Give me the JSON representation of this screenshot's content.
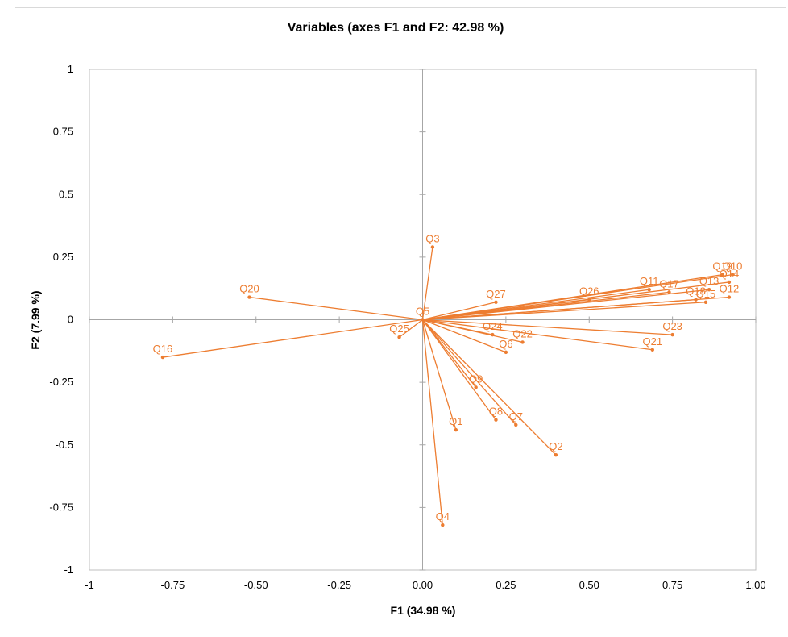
{
  "chart_data": {
    "type": "scatter",
    "title": "Variables (axes F1 and F2: 42.98 %)",
    "xlabel": "F1 (34.98 %)",
    "ylabel": "F2 (7.99 %)",
    "xlim": [
      -1,
      1
    ],
    "ylim": [
      -1,
      1
    ],
    "x_ticks": [
      "-1",
      "-0.75",
      "-0.50",
      "-0.25",
      "0.00",
      "0.25",
      "0.50",
      "0.75",
      "1.00"
    ],
    "x_tick_values": [
      -1,
      -0.75,
      -0.5,
      -0.25,
      0,
      0.25,
      0.5,
      0.75,
      1
    ],
    "y_ticks": [
      "1",
      "0.75",
      "0.5",
      "0.25",
      "0",
      "-0.25",
      "-0.5",
      "-0.75",
      "-1"
    ],
    "y_tick_values": [
      1,
      0.75,
      0.5,
      0.25,
      0,
      -0.25,
      -0.5,
      -0.75,
      -1
    ],
    "grid": false,
    "color": "#ED7D31",
    "points": [
      {
        "label": "Q1",
        "x": 0.1,
        "y": -0.44
      },
      {
        "label": "Q2",
        "x": 0.4,
        "y": -0.54
      },
      {
        "label": "Q3",
        "x": 0.03,
        "y": 0.29
      },
      {
        "label": "Q4",
        "x": 0.06,
        "y": -0.82
      },
      {
        "label": "Q5",
        "x": 0.0,
        "y": 0.0
      },
      {
        "label": "Q6",
        "x": 0.25,
        "y": -0.13
      },
      {
        "label": "Q7",
        "x": 0.28,
        "y": -0.42
      },
      {
        "label": "Q8",
        "x": 0.22,
        "y": -0.4
      },
      {
        "label": "Q9",
        "x": 0.16,
        "y": -0.27
      },
      {
        "label": "Q10",
        "x": 0.93,
        "y": 0.18
      },
      {
        "label": "Q11",
        "x": 0.68,
        "y": 0.12
      },
      {
        "label": "Q12",
        "x": 0.92,
        "y": 0.09
      },
      {
        "label": "Q13",
        "x": 0.86,
        "y": 0.12
      },
      {
        "label": "Q14",
        "x": 0.92,
        "y": 0.15
      },
      {
        "label": "Q15",
        "x": 0.85,
        "y": 0.07
      },
      {
        "label": "Q16",
        "x": -0.78,
        "y": -0.15
      },
      {
        "label": "Q17",
        "x": 0.74,
        "y": 0.11
      },
      {
        "label": "Q18",
        "x": 0.82,
        "y": 0.08
      },
      {
        "label": "Q19",
        "x": 0.9,
        "y": 0.18
      },
      {
        "label": "Q20",
        "x": -0.52,
        "y": 0.09
      },
      {
        "label": "Q21",
        "x": 0.69,
        "y": -0.12
      },
      {
        "label": "Q22",
        "x": 0.3,
        "y": -0.09
      },
      {
        "label": "Q23",
        "x": 0.75,
        "y": -0.06
      },
      {
        "label": "Q24",
        "x": 0.21,
        "y": -0.06
      },
      {
        "label": "Q25",
        "x": -0.07,
        "y": -0.07
      },
      {
        "label": "Q26",
        "x": 0.5,
        "y": 0.08
      },
      {
        "label": "Q27",
        "x": 0.22,
        "y": 0.07
      }
    ]
  }
}
